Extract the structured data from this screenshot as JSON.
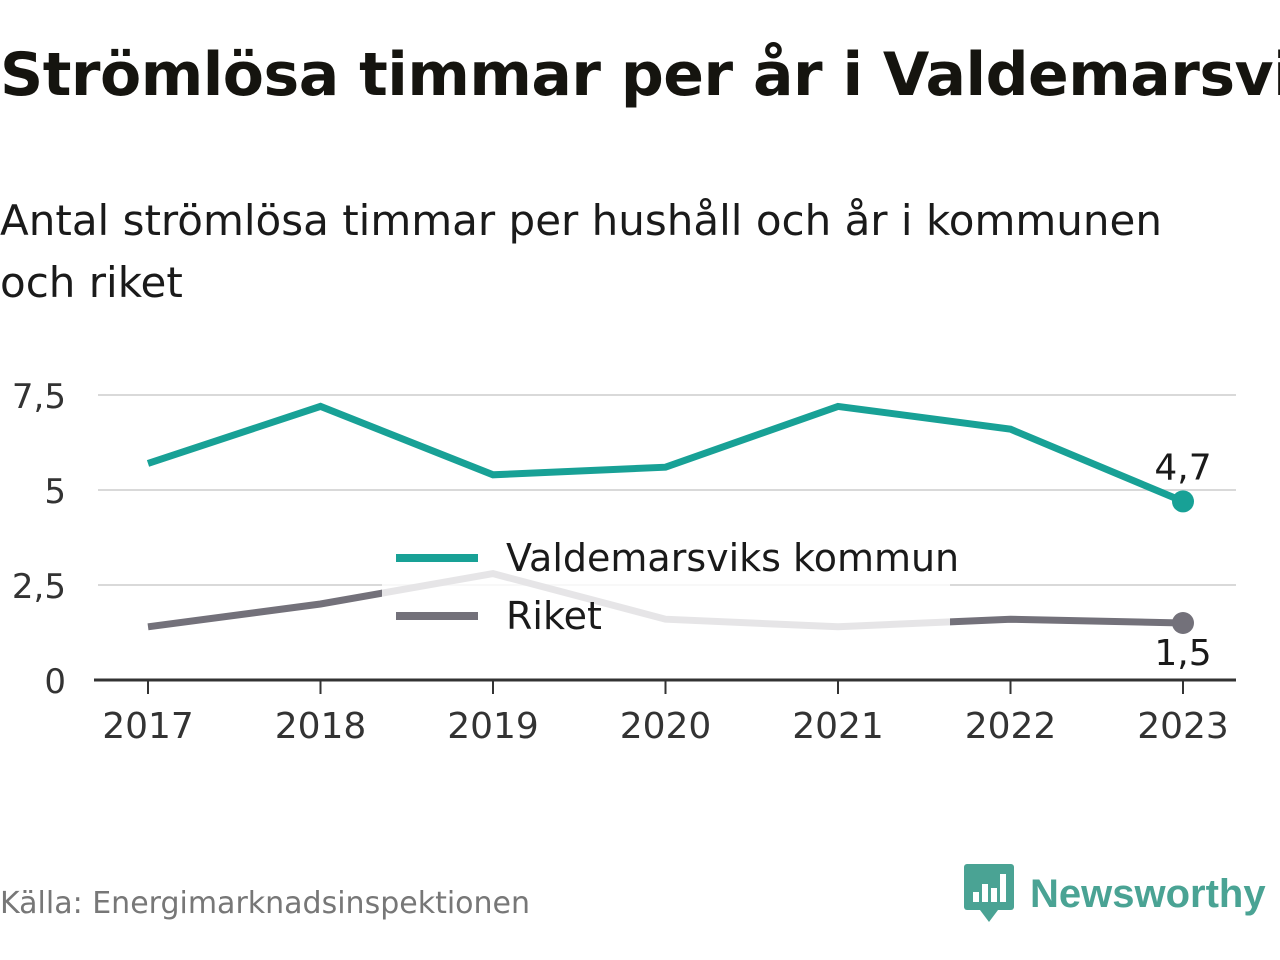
{
  "title": "Strömlösa timmar per år i Valdemarsvik",
  "subtitle": "Antal strömlösa timmar per hushåll och år i kommunen och riket",
  "source": "Källa: Energimarknadsinspektionen",
  "brand": {
    "name": "Newsworthy",
    "icon": "newsworthy-logo-icon",
    "color": "#4aa394"
  },
  "chart_data": {
    "type": "line",
    "title": "Strömlösa timmar per år i Valdemarsvik",
    "subtitle": "Antal strömlösa timmar per hushåll och år i kommunen och riket",
    "categories": [
      "2017",
      "2018",
      "2019",
      "2020",
      "2021",
      "2022",
      "2023"
    ],
    "yticks": [
      {
        "value": 0,
        "label": "0"
      },
      {
        "value": 2.5,
        "label": "2,5"
      },
      {
        "value": 5,
        "label": "5"
      },
      {
        "value": 7.5,
        "label": "7,5"
      }
    ],
    "ylim": [
      0,
      7.5
    ],
    "grid": true,
    "legend": "center",
    "series": [
      {
        "name": "Valdemarsviks kommun",
        "color": "#18a196",
        "values": [
          5.7,
          7.2,
          5.4,
          5.6,
          7.2,
          6.6,
          4.7
        ],
        "end_label": "4,7"
      },
      {
        "name": "Riket",
        "color": "#73717a",
        "values": [
          1.4,
          2.0,
          2.8,
          1.6,
          1.4,
          1.6,
          1.5
        ],
        "end_label": "1,5"
      }
    ]
  }
}
